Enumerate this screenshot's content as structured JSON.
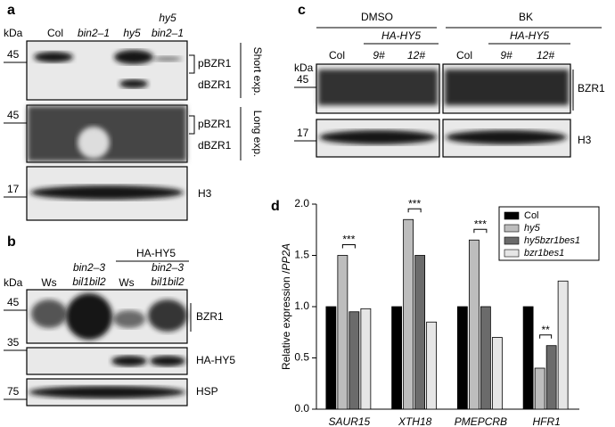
{
  "panels": {
    "a": {
      "letter": "a",
      "kda": "kDa",
      "lanes": [
        "Col",
        "bin2–1",
        "hy5"
      ],
      "lane4": [
        "hy5",
        "bin2–1"
      ],
      "markers": [
        "45",
        "45",
        "17"
      ],
      "short": [
        "pBZR1",
        "dBZR1"
      ],
      "short_exp": "Short exp.",
      "long": [
        "pBZR1",
        "dBZR1"
      ],
      "long_exp": "Long exp.",
      "h3": "H3"
    },
    "b": {
      "letter": "b",
      "kda": "kDa",
      "group": "HA-HY5",
      "lane1": "Ws",
      "lane2": [
        "bin2–3",
        "bil1bil2"
      ],
      "lane3": "Ws",
      "lane4": [
        "bin2–3",
        "bil1bil2"
      ],
      "markers": [
        "45",
        "35",
        "75"
      ],
      "rows": [
        "BZR1",
        "HA-HY5",
        "HSP"
      ]
    },
    "c": {
      "letter": "c",
      "kda": "kDa",
      "treatments": [
        "DMSO",
        "BK"
      ],
      "groups": [
        "HA-HY5",
        "HA-HY5"
      ],
      "lanes": [
        "Col",
        "9#",
        "12#",
        "Col",
        "9#",
        "12#"
      ],
      "markers": [
        "45",
        "17"
      ],
      "rows": [
        "BZR1",
        "H3"
      ]
    }
  },
  "chart_data": {
    "type": "bar",
    "letter": "d",
    "y_label": [
      "Relative expression /",
      "PP2A"
    ],
    "categories": [
      "SAUR15",
      "XTH18",
      "PMEPCRB",
      "HFR1"
    ],
    "series": [
      {
        "name": "Col",
        "color": "#000000",
        "values": [
          1.0,
          1.0,
          1.0,
          1.0
        ]
      },
      {
        "name": "hy5",
        "color": "#bdbdbd",
        "values": [
          1.5,
          1.85,
          1.65,
          0.4
        ]
      },
      {
        "name": "hy5bzr1bes1",
        "color": "#6b6b6b",
        "values": [
          0.95,
          1.5,
          1.0,
          0.62
        ]
      },
      {
        "name": "bzr1bes1",
        "color": "#e6e6e6",
        "values": [
          0.98,
          0.85,
          0.7,
          1.25
        ]
      }
    ],
    "annotations": [
      "***",
      "***",
      "***",
      "**"
    ],
    "ylim": [
      0,
      2.0
    ],
    "yticks": [
      {
        "value": 0,
        "label": "0.0"
      },
      0.5,
      {
        "value": 1,
        "label": "1.0"
      },
      1.5,
      {
        "value": 2,
        "label": "2.0"
      }
    ],
    "legend": "upper right"
  }
}
